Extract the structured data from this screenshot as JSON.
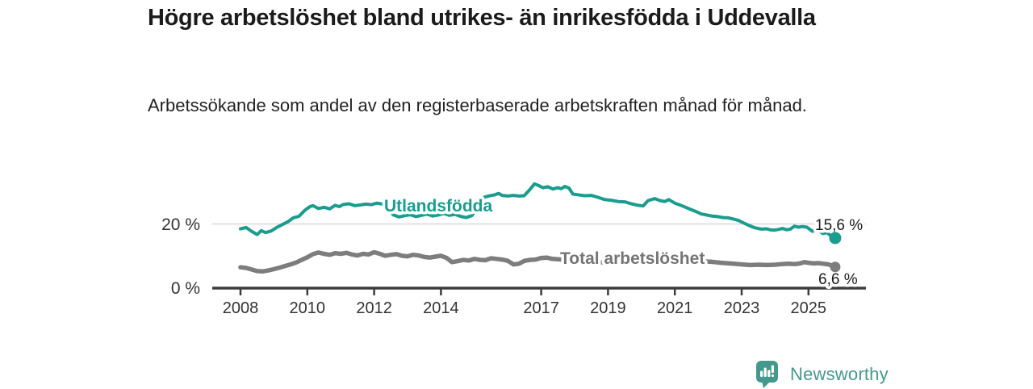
{
  "header": {
    "title": "Högre arbetslöshet bland utrikes- än inrikesfödda i Uddevalla",
    "subtitle": "Arbetssökande som andel av den registerbaserade arbetskraften månad för månad."
  },
  "footer": {
    "brand": "Newsworthy",
    "logo_icon": "bar-chart-speech-bubble-icon",
    "brand_color": "#45998c"
  },
  "chart_data": {
    "type": "line",
    "unit": "percent of registered labour force",
    "x_axis": {
      "ticks": [
        2008,
        2010,
        2012,
        2014,
        2017,
        2019,
        2021,
        2023,
        2025
      ],
      "range": [
        2007.15,
        2025.95
      ],
      "axis_color": "#3d3d3d"
    },
    "y_axis": {
      "ticks": [
        {
          "value": 0,
          "label": "0 %"
        },
        {
          "value": 20,
          "label": "20 %"
        }
      ],
      "range": [
        0,
        34
      ],
      "gridlines": [
        20
      ],
      "grid_color": "#d9d9d9"
    },
    "series": [
      {
        "name": "Utlandsfödda",
        "color": "#1a9c8e",
        "end_value": 15.6,
        "end_label": "15,6 %",
        "points": [
          [
            2008.0,
            18.5
          ],
          [
            2008.17,
            18.9
          ],
          [
            2008.33,
            17.7
          ],
          [
            2008.5,
            16.7
          ],
          [
            2008.62,
            17.9
          ],
          [
            2008.75,
            17.3
          ],
          [
            2008.92,
            17.8
          ],
          [
            2009.08,
            18.9
          ],
          [
            2009.25,
            19.8
          ],
          [
            2009.42,
            20.7
          ],
          [
            2009.58,
            21.9
          ],
          [
            2009.75,
            22.4
          ],
          [
            2009.92,
            24.2
          ],
          [
            2010.08,
            25.4
          ],
          [
            2010.17,
            25.7
          ],
          [
            2010.33,
            24.8
          ],
          [
            2010.5,
            25.2
          ],
          [
            2010.67,
            24.7
          ],
          [
            2010.83,
            25.8
          ],
          [
            2010.96,
            25.4
          ],
          [
            2011.08,
            26.1
          ],
          [
            2011.25,
            26.3
          ],
          [
            2011.42,
            25.7
          ],
          [
            2011.58,
            25.9
          ],
          [
            2011.75,
            26.2
          ],
          [
            2011.92,
            26.0
          ],
          [
            2012.08,
            26.5
          ],
          [
            2012.25,
            26.2
          ],
          [
            2012.42,
            24.3
          ],
          [
            2012.58,
            22.8
          ],
          [
            2012.75,
            22.2
          ],
          [
            2012.92,
            22.6
          ],
          [
            2013.08,
            22.9
          ],
          [
            2013.25,
            22.3
          ],
          [
            2013.42,
            22.7
          ],
          [
            2013.58,
            23.1
          ],
          [
            2013.75,
            22.5
          ],
          [
            2013.92,
            22.8
          ],
          [
            2014.08,
            23.3
          ],
          [
            2014.25,
            22.7
          ],
          [
            2014.42,
            23.0
          ],
          [
            2014.58,
            22.4
          ],
          [
            2014.75,
            22.0
          ],
          [
            2014.92,
            22.6
          ],
          [
            2015.08,
            24.6
          ],
          [
            2015.25,
            28.2
          ],
          [
            2015.42,
            28.7
          ],
          [
            2015.58,
            29.0
          ],
          [
            2015.73,
            29.5
          ],
          [
            2015.83,
            28.9
          ],
          [
            2016.0,
            28.7
          ],
          [
            2016.17,
            28.9
          ],
          [
            2016.33,
            28.7
          ],
          [
            2016.49,
            28.8
          ],
          [
            2016.65,
            30.6
          ],
          [
            2016.8,
            32.5
          ],
          [
            2016.92,
            32.0
          ],
          [
            2017.05,
            31.3
          ],
          [
            2017.2,
            31.6
          ],
          [
            2017.35,
            30.9
          ],
          [
            2017.5,
            31.3
          ],
          [
            2017.6,
            31.0
          ],
          [
            2017.71,
            31.7
          ],
          [
            2017.83,
            31.2
          ],
          [
            2017.95,
            29.3
          ],
          [
            2018.1,
            29.1
          ],
          [
            2018.3,
            28.8
          ],
          [
            2018.5,
            28.9
          ],
          [
            2018.7,
            28.3
          ],
          [
            2018.9,
            27.6
          ],
          [
            2019.1,
            27.4
          ],
          [
            2019.3,
            27.0
          ],
          [
            2019.5,
            26.9
          ],
          [
            2019.7,
            26.3
          ],
          [
            2019.9,
            25.8
          ],
          [
            2020.05,
            25.6
          ],
          [
            2020.2,
            27.3
          ],
          [
            2020.4,
            27.9
          ],
          [
            2020.55,
            27.3
          ],
          [
            2020.7,
            27.0
          ],
          [
            2020.82,
            27.6
          ],
          [
            2021.0,
            26.5
          ],
          [
            2021.15,
            25.9
          ],
          [
            2021.3,
            25.3
          ],
          [
            2021.5,
            24.4
          ],
          [
            2021.65,
            23.8
          ],
          [
            2021.8,
            23.1
          ],
          [
            2021.95,
            22.8
          ],
          [
            2022.1,
            22.5
          ],
          [
            2022.28,
            22.3
          ],
          [
            2022.45,
            22.0
          ],
          [
            2022.6,
            21.9
          ],
          [
            2022.76,
            21.5
          ],
          [
            2022.9,
            21.1
          ],
          [
            2023.0,
            20.6
          ],
          [
            2023.12,
            20.0
          ],
          [
            2023.25,
            19.4
          ],
          [
            2023.37,
            18.9
          ],
          [
            2023.49,
            18.6
          ],
          [
            2023.6,
            18.4
          ],
          [
            2023.75,
            18.5
          ],
          [
            2023.85,
            18.2
          ],
          [
            2023.98,
            18.1
          ],
          [
            2024.1,
            18.3
          ],
          [
            2024.22,
            18.6
          ],
          [
            2024.35,
            18.2
          ],
          [
            2024.46,
            18.4
          ],
          [
            2024.58,
            19.3
          ],
          [
            2024.7,
            19.0
          ],
          [
            2024.82,
            19.2
          ],
          [
            2024.95,
            19.0
          ],
          [
            2025.12,
            17.7
          ],
          [
            2025.26,
            18.3
          ],
          [
            2025.43,
            17.0
          ],
          [
            2025.55,
            17.3
          ],
          [
            2025.65,
            16.5
          ],
          [
            2025.8,
            15.6
          ]
        ]
      },
      {
        "name": "Total arbetslöshet",
        "color": "#7d7d7d",
        "end_value": 6.6,
        "end_label": "6,6 %",
        "points": [
          [
            2008.0,
            6.5
          ],
          [
            2008.17,
            6.3
          ],
          [
            2008.33,
            5.8
          ],
          [
            2008.5,
            5.3
          ],
          [
            2008.67,
            5.2
          ],
          [
            2008.83,
            5.5
          ],
          [
            2009.0,
            5.9
          ],
          [
            2009.17,
            6.4
          ],
          [
            2009.33,
            6.9
          ],
          [
            2009.5,
            7.4
          ],
          [
            2009.67,
            8.0
          ],
          [
            2009.83,
            8.8
          ],
          [
            2010.0,
            9.6
          ],
          [
            2010.17,
            10.6
          ],
          [
            2010.33,
            11.1
          ],
          [
            2010.5,
            10.7
          ],
          [
            2010.67,
            10.4
          ],
          [
            2010.83,
            10.9
          ],
          [
            2011.0,
            10.7
          ],
          [
            2011.17,
            11.0
          ],
          [
            2011.33,
            10.5
          ],
          [
            2011.5,
            10.2
          ],
          [
            2011.67,
            10.7
          ],
          [
            2011.83,
            10.5
          ],
          [
            2012.0,
            11.2
          ],
          [
            2012.17,
            10.7
          ],
          [
            2012.33,
            10.1
          ],
          [
            2012.5,
            10.4
          ],
          [
            2012.67,
            10.6
          ],
          [
            2012.83,
            10.1
          ],
          [
            2013.0,
            9.9
          ],
          [
            2013.17,
            10.4
          ],
          [
            2013.33,
            10.2
          ],
          [
            2013.5,
            9.7
          ],
          [
            2013.67,
            9.5
          ],
          [
            2013.83,
            9.8
          ],
          [
            2014.0,
            10.1
          ],
          [
            2014.17,
            9.4
          ],
          [
            2014.33,
            8.1
          ],
          [
            2014.5,
            8.4
          ],
          [
            2014.67,
            8.8
          ],
          [
            2014.83,
            8.6
          ],
          [
            2015.0,
            9.1
          ],
          [
            2015.17,
            8.8
          ],
          [
            2015.33,
            8.7
          ],
          [
            2015.5,
            9.3
          ],
          [
            2015.67,
            9.1
          ],
          [
            2015.83,
            8.9
          ],
          [
            2016.0,
            8.5
          ],
          [
            2016.17,
            7.4
          ],
          [
            2016.33,
            7.6
          ],
          [
            2016.5,
            8.5
          ],
          [
            2016.67,
            8.8
          ],
          [
            2016.83,
            8.9
          ],
          [
            2017.0,
            9.4
          ],
          [
            2017.17,
            9.5
          ],
          [
            2017.33,
            9.1
          ],
          [
            2017.5,
            9.0
          ],
          [
            2017.7,
            8.8
          ],
          [
            2017.9,
            8.6
          ],
          [
            2018.1,
            8.5
          ],
          [
            2018.3,
            8.4
          ],
          [
            2018.5,
            8.2
          ],
          [
            2018.7,
            8.1
          ],
          [
            2018.9,
            8.0
          ],
          [
            2019.1,
            8.0
          ],
          [
            2019.3,
            7.9
          ],
          [
            2019.5,
            7.9
          ],
          [
            2019.7,
            8.0
          ],
          [
            2019.9,
            8.2
          ],
          [
            2020.1,
            8.6
          ],
          [
            2020.3,
            9.5
          ],
          [
            2020.5,
            9.8
          ],
          [
            2020.7,
            9.6
          ],
          [
            2020.9,
            9.3
          ],
          [
            2021.1,
            9.0
          ],
          [
            2021.3,
            8.8
          ],
          [
            2021.5,
            8.6
          ],
          [
            2021.7,
            8.4
          ],
          [
            2021.9,
            8.3
          ],
          [
            2022.1,
            8.2
          ],
          [
            2022.28,
            8.0
          ],
          [
            2022.5,
            7.8
          ],
          [
            2022.76,
            7.6
          ],
          [
            2023.0,
            7.4
          ],
          [
            2023.25,
            7.2
          ],
          [
            2023.5,
            7.3
          ],
          [
            2023.75,
            7.2
          ],
          [
            2024.0,
            7.3
          ],
          [
            2024.2,
            7.5
          ],
          [
            2024.4,
            7.6
          ],
          [
            2024.6,
            7.5
          ],
          [
            2024.75,
            7.7
          ],
          [
            2024.88,
            8.1
          ],
          [
            2025.0,
            7.9
          ],
          [
            2025.15,
            7.7
          ],
          [
            2025.3,
            7.8
          ],
          [
            2025.45,
            7.6
          ],
          [
            2025.6,
            7.4
          ],
          [
            2025.8,
            6.6
          ]
        ]
      }
    ]
  }
}
